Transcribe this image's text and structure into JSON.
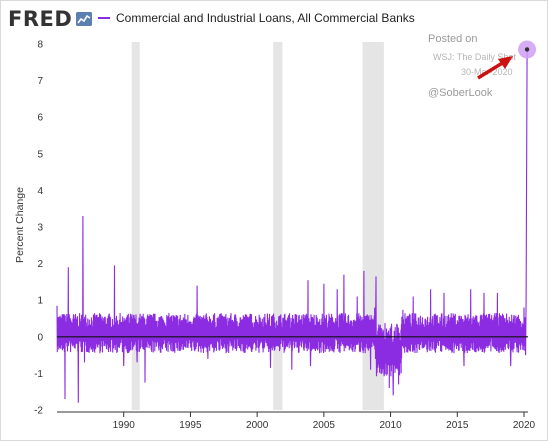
{
  "header": {
    "logo_text": "FRED",
    "legend_label": "Commercial and Industrial Loans, All Commercial Banks"
  },
  "colors": {
    "series": "#8b2be2",
    "recession": "#e5e5e5",
    "arrow": "#cc1111"
  },
  "annotation": {
    "posted_on": "Posted on",
    "source": "WSJ: The Daily Shot",
    "date": "30-Mar-2020",
    "handle": "@SoberLook"
  },
  "chart_data": {
    "type": "line",
    "title": "",
    "ylabel": "Percent Change",
    "xlabel": "",
    "xlim": [
      1985.0,
      2020.3
    ],
    "ylim": [
      -2,
      8
    ],
    "x_ticks": [
      1990,
      1995,
      2000,
      2005,
      2010,
      2015,
      2020
    ],
    "y_ticks": [
      -2,
      -1,
      0,
      1,
      2,
      3,
      4,
      5,
      6,
      7,
      8
    ],
    "grid": false,
    "legend_position": "top",
    "recessions": [
      [
        1990.6,
        1991.2
      ],
      [
        2001.2,
        2001.9
      ],
      [
        2007.9,
        2009.5
      ]
    ],
    "series": [
      {
        "name": "Commercial and Industrial Loans, All Commercial Banks",
        "frequency": "weekly",
        "x": [
          1985.0,
          1985.6,
          1985.85,
          1986.6,
          1986.95,
          1987.05,
          1989.3,
          1990.0,
          1991.0,
          1991.6,
          1995.5,
          1996.3,
          2001.0,
          2002.6,
          2003.8,
          2004.0,
          2005.0,
          2006.0,
          2006.5,
          2007.5,
          2008.0,
          2008.5,
          2008.9,
          2009.5,
          2009.9,
          2010.2,
          2010.6,
          2011.7,
          2013.0,
          2014.0,
          2015.5,
          2016.0,
          2017.0,
          2018.0,
          2019.0,
          2020.0,
          2020.12,
          2020.16,
          2020.2,
          2020.23
        ],
        "y": [
          0.85,
          -1.7,
          1.9,
          -1.8,
          3.3,
          -0.7,
          1.95,
          -0.8,
          -0.7,
          -1.25,
          1.4,
          -0.6,
          -0.85,
          -0.9,
          1.55,
          -0.8,
          1.45,
          1.3,
          1.7,
          1.1,
          1.8,
          -0.9,
          1.65,
          -1.0,
          -1.4,
          -1.6,
          -1.3,
          1.1,
          1.3,
          1.2,
          -0.8,
          1.3,
          1.2,
          1.2,
          -0.8,
          0.8,
          -0.5,
          1.0,
          5.2,
          7.85
        ]
      }
    ]
  }
}
